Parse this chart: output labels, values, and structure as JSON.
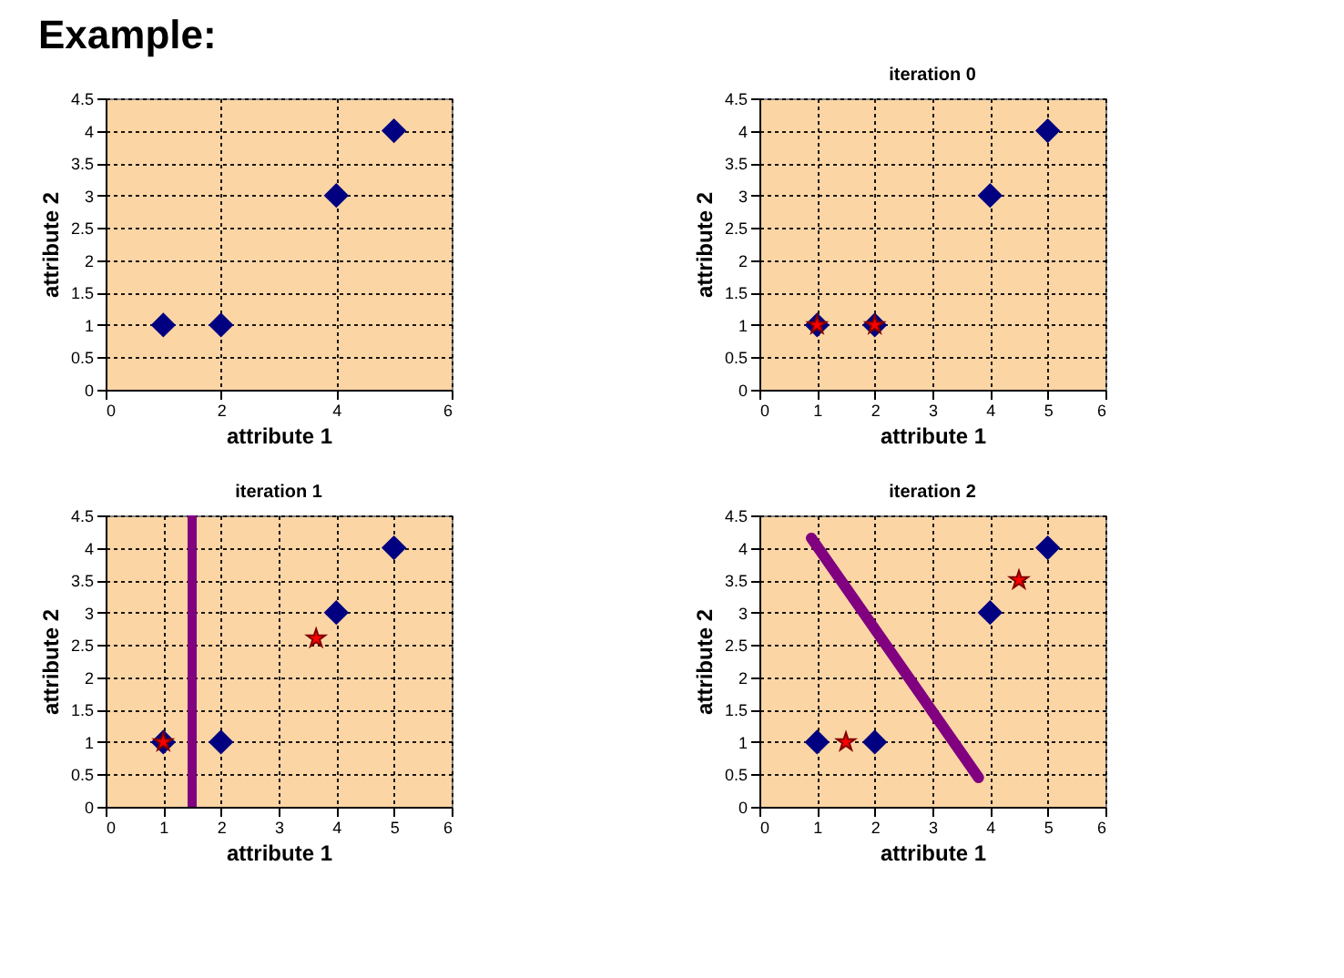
{
  "chart_data": [
    {
      "type": "scatter",
      "title": "Example:",
      "xlabel": "attribute 1",
      "ylabel": "attribute 2",
      "xlim": [
        0,
        6
      ],
      "xticks": [
        0,
        2,
        4,
        6
      ],
      "ylim": [
        0,
        4.5
      ],
      "yticks": [
        0,
        0.5,
        1,
        1.5,
        2,
        2.5,
        3,
        3.5,
        4,
        4.5
      ],
      "grid": true,
      "series": [
        {
          "color": "#000080",
          "marker": "diamond",
          "x": [
            1,
            2,
            4,
            5
          ],
          "values": [
            1,
            1,
            3,
            4
          ]
        }
      ]
    },
    {
      "type": "scatter",
      "title": "iteration 0",
      "xlabel": "attribute 1",
      "ylabel": "attribute 2",
      "xlim": [
        0,
        6
      ],
      "xticks": [
        0,
        1,
        2,
        3,
        4,
        5,
        6
      ],
      "ylim": [
        0,
        4.5
      ],
      "yticks": [
        0,
        0.5,
        1,
        1.5,
        2,
        2.5,
        3,
        3.5,
        4,
        4.5
      ],
      "grid": true,
      "series": [
        {
          "color": "#000080",
          "marker": "diamond",
          "x": [
            1,
            2,
            4,
            5
          ],
          "values": [
            1,
            1,
            3,
            4
          ]
        },
        {
          "color": "#ff0000",
          "marker": "star",
          "x": [
            1,
            2
          ],
          "values": [
            1,
            1
          ]
        }
      ]
    },
    {
      "type": "scatter",
      "title": "iteration 1",
      "xlabel": "attribute 1",
      "ylabel": "attribute 2",
      "xlim": [
        0,
        6
      ],
      "xticks": [
        0,
        1,
        2,
        3,
        4,
        5,
        6
      ],
      "ylim": [
        0,
        4.5
      ],
      "yticks": [
        0,
        0.5,
        1,
        1.5,
        2,
        2.5,
        3,
        3.5,
        4,
        4.5
      ],
      "grid": true,
      "series": [
        {
          "color": "#000080",
          "marker": "diamond",
          "x": [
            1,
            2,
            4,
            5
          ],
          "values": [
            1,
            1,
            3,
            4
          ]
        },
        {
          "color": "#ff0000",
          "marker": "star",
          "x": [
            1,
            3.65
          ],
          "values": [
            1,
            2.6
          ]
        }
      ],
      "ref_lines": [
        {
          "axis": "x",
          "value": 1.5,
          "color": "#800080"
        }
      ]
    },
    {
      "type": "scatter",
      "title": "iteration 2",
      "xlabel": "attribute 1",
      "ylabel": "attribute 2",
      "xlim": [
        0,
        6
      ],
      "xticks": [
        0,
        1,
        2,
        3,
        4,
        5,
        6
      ],
      "ylim": [
        0,
        4.5
      ],
      "yticks": [
        0,
        0.5,
        1,
        1.5,
        2,
        2.5,
        3,
        3.5,
        4,
        4.5
      ],
      "grid": true,
      "series": [
        {
          "color": "#000080",
          "marker": "diamond",
          "x": [
            1,
            2,
            4,
            5
          ],
          "values": [
            1,
            1,
            3,
            4
          ]
        },
        {
          "color": "#ff0000",
          "marker": "star",
          "x": [
            1.5,
            4.5
          ],
          "values": [
            1,
            3.5
          ]
        },
        {
          "type": "line",
          "color": "#800080",
          "x": [
            0.9,
            3.8
          ],
          "values": [
            4.15,
            0.45
          ]
        }
      ]
    }
  ]
}
